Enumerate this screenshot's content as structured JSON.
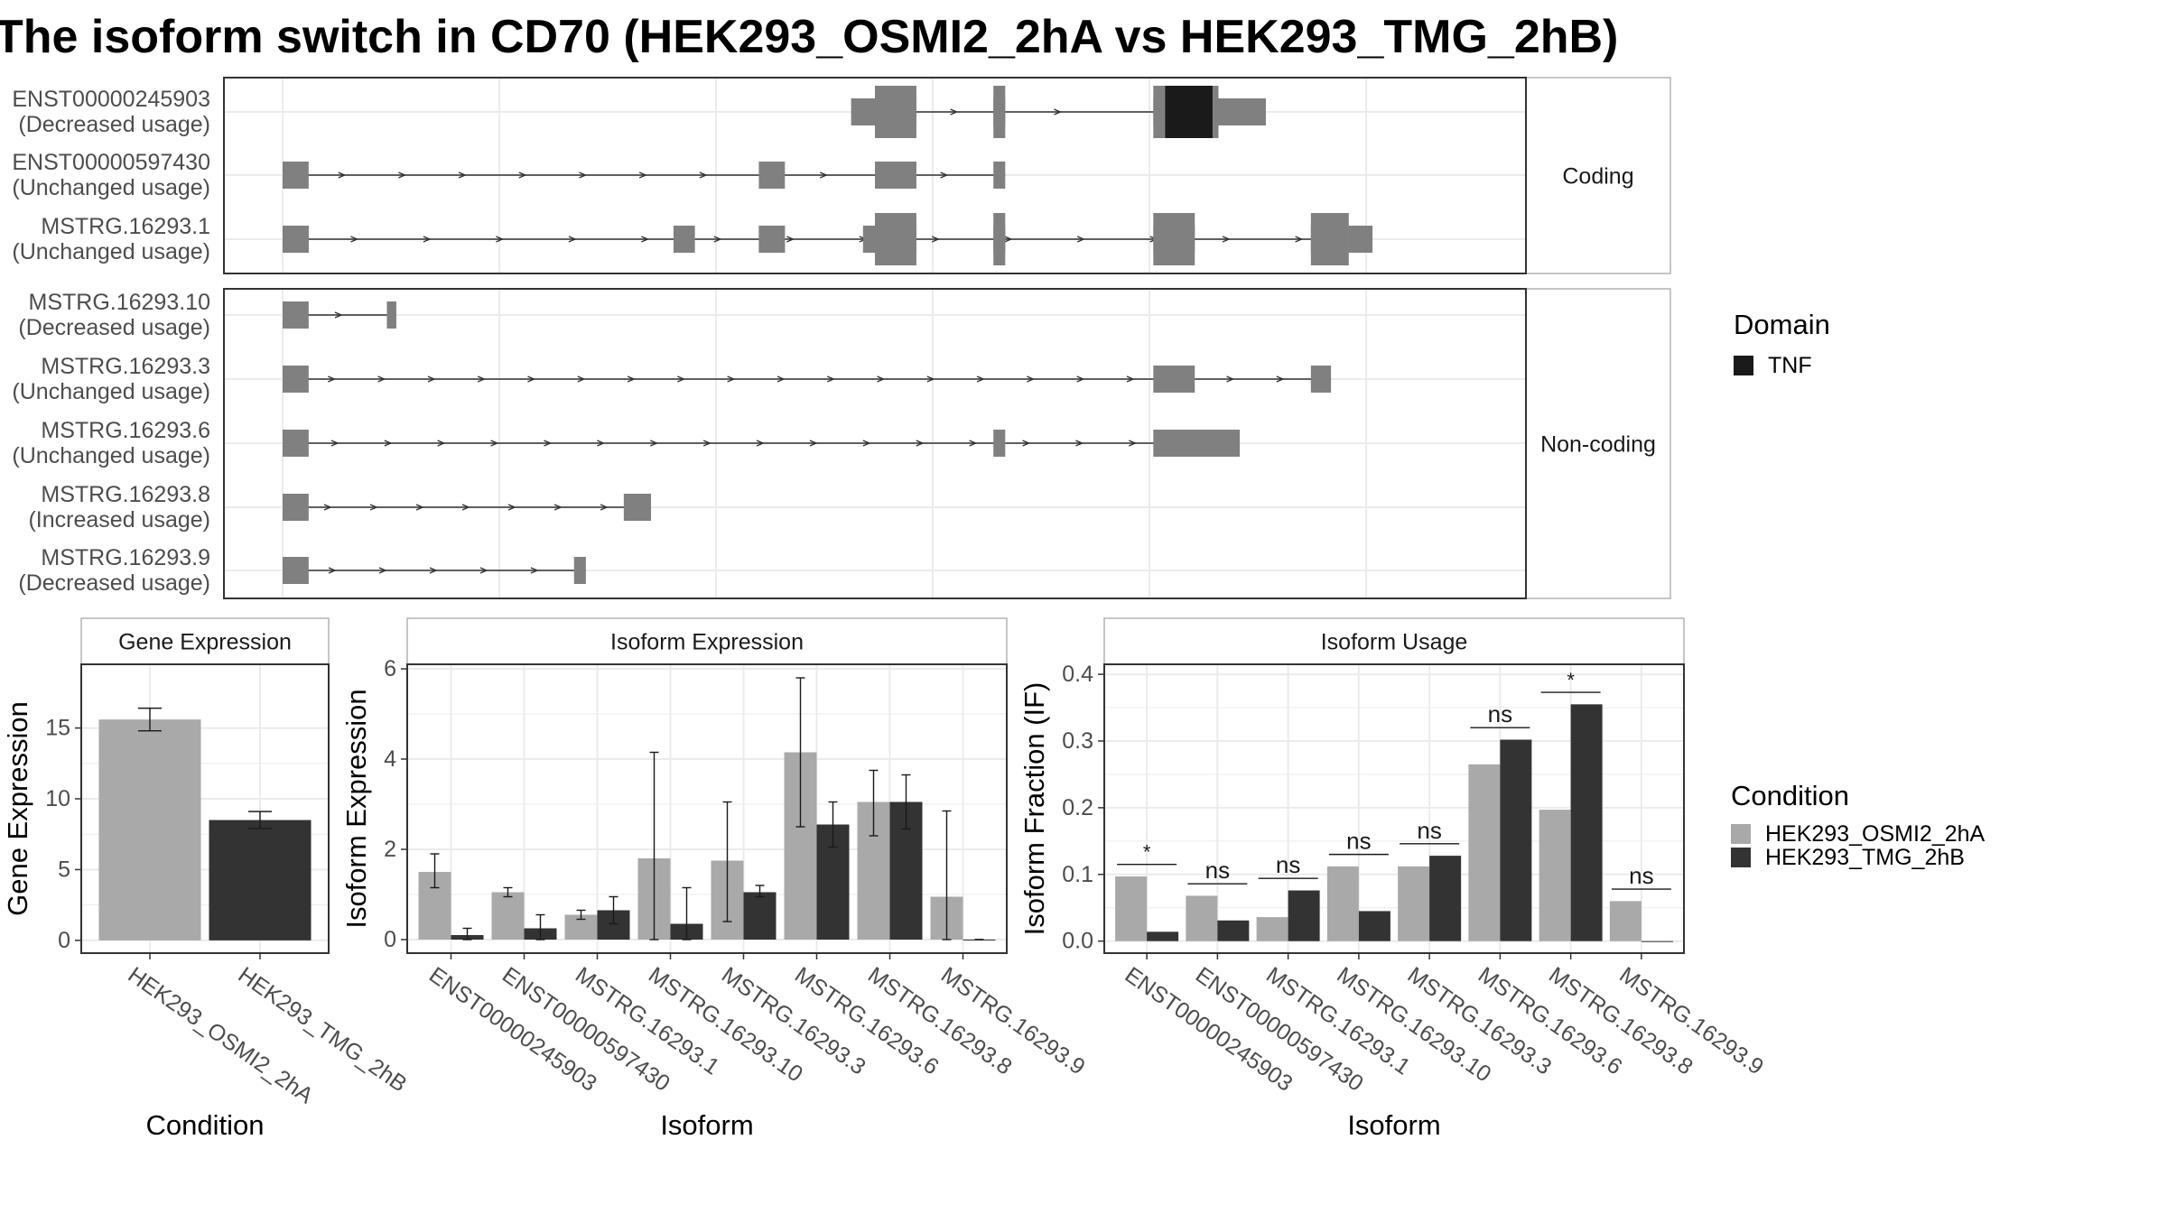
{
  "title": "The isoform switch in CD70 (HEK293_OSMI2_2hA vs HEK293_TMG_2hB)",
  "colors": {
    "exon": "#808080",
    "domain_tnf": "#1a1a1a",
    "condition_a": "#a9a9a9",
    "condition_b": "#333333",
    "panel_border": "#333333",
    "strip_border": "#b3b3b3",
    "grid": "#ebebeb"
  },
  "structure": {
    "facets": [
      "Coding",
      "Non-coding"
    ],
    "x_range": [
      0,
      1
    ],
    "transcripts": [
      {
        "id": "ENST00000245903",
        "usage": "(Decreased usage)",
        "facet": "Coding",
        "exons": [
          [
            0.48,
            0.5
          ],
          [
            0.5,
            0.535
          ],
          [
            0.6,
            0.61
          ],
          [
            0.735,
            0.75
          ],
          [
            0.75,
            0.79
          ],
          [
            0.79,
            0.83
          ]
        ],
        "cds": [
          [
            0.5,
            0.535
          ],
          [
            0.6,
            0.61
          ],
          [
            0.735,
            0.79
          ]
        ],
        "domain": [
          [
            0.745,
            0.785
          ]
        ],
        "intron_arrows": 3
      },
      {
        "id": "ENST00000597430",
        "usage": "(Unchanged usage)",
        "facet": "Coding",
        "exons": [
          [
            0.0,
            0.022
          ],
          [
            0.402,
            0.424
          ],
          [
            0.5,
            0.535
          ],
          [
            0.6,
            0.61
          ]
        ],
        "cds": [],
        "domain": [],
        "intron_arrows": 11
      },
      {
        "id": "MSTRG.16293.1",
        "usage": "(Unchanged usage)",
        "facet": "Coding",
        "exons": [
          [
            0.0,
            0.022
          ],
          [
            0.33,
            0.348
          ],
          [
            0.402,
            0.424
          ],
          [
            0.49,
            0.5
          ],
          [
            0.5,
            0.535
          ],
          [
            0.6,
            0.61
          ],
          [
            0.735,
            0.77
          ],
          [
            0.868,
            0.9
          ],
          [
            0.9,
            0.92
          ]
        ],
        "cds": [
          [
            0.5,
            0.535
          ],
          [
            0.6,
            0.61
          ],
          [
            0.735,
            0.77
          ],
          [
            0.868,
            0.9
          ]
        ],
        "domain": [],
        "intron_arrows": 14
      },
      {
        "id": "MSTRG.16293.10",
        "usage": "(Decreased usage)",
        "facet": "Non-coding",
        "exons": [
          [
            0.0,
            0.022
          ],
          [
            0.088,
            0.096
          ]
        ],
        "cds": [],
        "domain": [],
        "intron_arrows": 1
      },
      {
        "id": "MSTRG.16293.3",
        "usage": "(Unchanged usage)",
        "facet": "Non-coding",
        "exons": [
          [
            0.0,
            0.022
          ],
          [
            0.735,
            0.77
          ],
          [
            0.868,
            0.885
          ]
        ],
        "cds": [],
        "domain": [],
        "intron_arrows": 20
      },
      {
        "id": "MSTRG.16293.6",
        "usage": "(Unchanged usage)",
        "facet": "Non-coding",
        "exons": [
          [
            0.0,
            0.022
          ],
          [
            0.6,
            0.61
          ],
          [
            0.735,
            0.808
          ]
        ],
        "cds": [],
        "domain": [],
        "intron_arrows": 17
      },
      {
        "id": "MSTRG.16293.8",
        "usage": "(Increased usage)",
        "facet": "Non-coding",
        "exons": [
          [
            0.0,
            0.022
          ],
          [
            0.288,
            0.311
          ]
        ],
        "cds": [],
        "domain": [],
        "intron_arrows": 7
      },
      {
        "id": "MSTRG.16293.9",
        "usage": "(Decreased usage)",
        "facet": "Non-coding",
        "exons": [
          [
            0.0,
            0.022
          ],
          [
            0.246,
            0.256
          ]
        ],
        "cds": [],
        "domain": [],
        "intron_arrows": 5
      }
    ]
  },
  "legend_domain": {
    "title": "Domain",
    "entries": [
      {
        "label": "TNF",
        "color": "#1a1a1a"
      }
    ]
  },
  "legend_condition": {
    "title": "Condition",
    "entries": [
      {
        "label": "HEK293_OSMI2_2hA",
        "color": "#a9a9a9"
      },
      {
        "label": "HEK293_TMG_2hB",
        "color": "#333333"
      }
    ]
  },
  "chart_data": [
    {
      "type": "bar",
      "title": "Gene Expression",
      "xlabel": "Condition",
      "ylabel": "Gene Expression",
      "ylim": [
        -0.9,
        19.5
      ],
      "yticks": [
        0,
        5,
        10,
        15
      ],
      "categories": [
        "HEK293_OSMI2_2hA",
        "HEK293_TMG_2hB"
      ],
      "values": [
        15.6,
        8.5
      ],
      "errors": [
        [
          14.8,
          16.4
        ],
        [
          7.9,
          9.1
        ]
      ]
    },
    {
      "type": "bar",
      "title": "Isoform Expression",
      "xlabel": "Isoform",
      "ylabel": "Isoform Expression",
      "ylim": [
        -0.3,
        6.1
      ],
      "yticks": [
        0,
        2,
        4,
        6
      ],
      "categories": [
        "ENST00000245903",
        "ENST00000597430",
        "MSTRG.16293.1",
        "MSTRG.16293.10",
        "MSTRG.16293.3",
        "MSTRG.16293.6",
        "MSTRG.16293.8",
        "MSTRG.16293.9"
      ],
      "series": [
        {
          "name": "HEK293_OSMI2_2hA",
          "values": [
            1.5,
            1.05,
            0.55,
            1.8,
            1.75,
            4.15,
            3.05,
            0.95
          ],
          "errors": [
            [
              1.15,
              1.9
            ],
            [
              0.95,
              1.15
            ],
            [
              0.45,
              0.65
            ],
            [
              0.0,
              4.15
            ],
            [
              0.4,
              3.05
            ],
            [
              2.5,
              5.8
            ],
            [
              2.3,
              3.75
            ],
            [
              0.0,
              2.85
            ]
          ]
        },
        {
          "name": "HEK293_TMG_2hB",
          "values": [
            0.1,
            0.25,
            0.65,
            0.35,
            1.05,
            2.55,
            3.05,
            0.0
          ],
          "errors": [
            [
              0.0,
              0.25
            ],
            [
              0.0,
              0.55
            ],
            [
              0.35,
              0.95
            ],
            [
              0.0,
              1.15
            ],
            [
              0.95,
              1.2
            ],
            [
              2.05,
              3.05
            ],
            [
              2.45,
              3.65
            ],
            [
              0.0,
              0.0
            ]
          ]
        }
      ]
    },
    {
      "type": "bar",
      "title": "Isoform Usage",
      "xlabel": "Isoform",
      "ylabel": "Isoform Fraction (IF)",
      "ylim": [
        -0.018,
        0.415
      ],
      "yticks": [
        0.0,
        0.1,
        0.2,
        0.3,
        0.4
      ],
      "ytick_labels": [
        "0.0",
        "0.1",
        "0.2",
        "0.3",
        "0.4"
      ],
      "categories": [
        "ENST00000245903",
        "ENST00000597430",
        "MSTRG.16293.1",
        "MSTRG.16293.10",
        "MSTRG.16293.3",
        "MSTRG.16293.6",
        "MSTRG.16293.8",
        "MSTRG.16293.9"
      ],
      "series": [
        {
          "name": "HEK293_OSMI2_2hA",
          "values": [
            0.097,
            0.068,
            0.036,
            0.112,
            0.112,
            0.265,
            0.197,
            0.06
          ]
        },
        {
          "name": "HEK293_TMG_2hB",
          "values": [
            0.014,
            0.031,
            0.076,
            0.045,
            0.128,
            0.302,
            0.355,
            0.0
          ]
        }
      ],
      "significance": [
        "*",
        "ns",
        "ns",
        "ns",
        "ns",
        "ns",
        "*",
        "ns"
      ]
    }
  ]
}
